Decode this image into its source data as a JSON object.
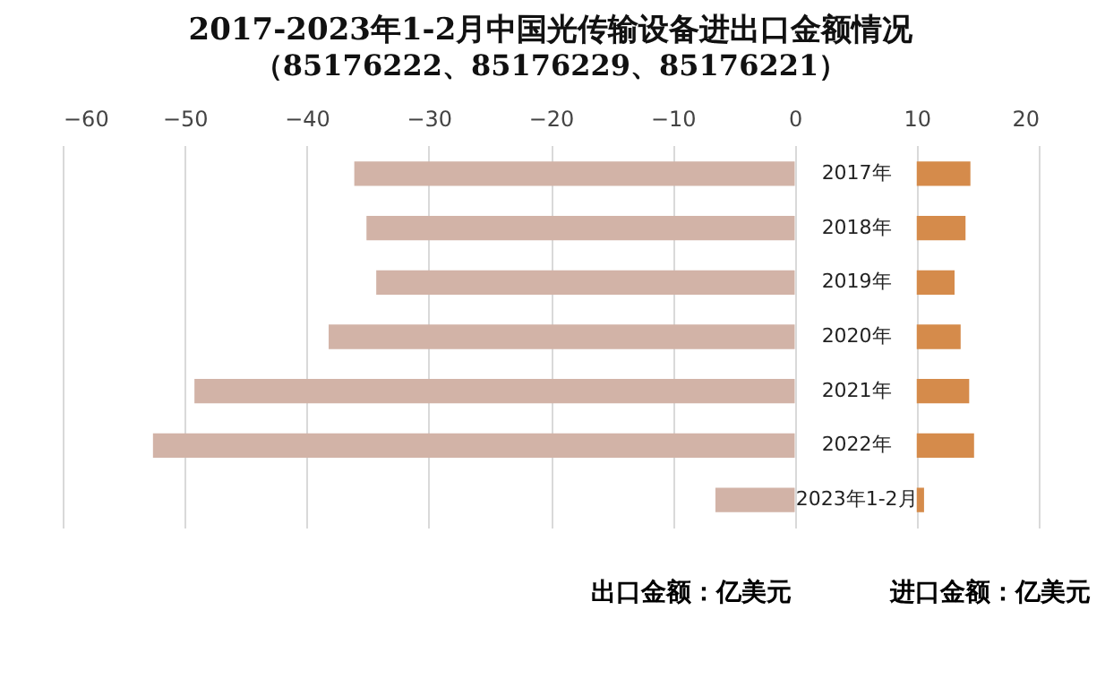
{
  "chart_data": {
    "type": "bar",
    "orientation": "horizontal",
    "title": "2017-2023年1-2月中国光传输设备进出口金额情况",
    "subtitle": "（85176222、85176229、85176221）",
    "categories": [
      "2017年",
      "2018年",
      "2019年",
      "2020年",
      "2021年",
      "2022年",
      "2023年1-2月"
    ],
    "series": [
      {
        "color": "#d2b3a7",
        "base": [
          0,
          0,
          0,
          0,
          0,
          0,
          0
        ],
        "values": [
          -36.1,
          -35.1,
          -34.3,
          -38.2,
          -49.2,
          -52.6,
          -6.5
        ]
      },
      {
        "color": "#d58b4b",
        "base": [
          10,
          10,
          10,
          10,
          10,
          10,
          10
        ],
        "values": [
          4.4,
          4.0,
          3.1,
          3.6,
          4.3,
          4.7,
          0.6
        ]
      }
    ],
    "xlim": [
      -60,
      20
    ],
    "xticks": [
      -60,
      -50,
      -40,
      -30,
      -20,
      -10,
      0,
      10,
      20
    ],
    "grid": "x",
    "annotations": [
      "出口金额：亿美元",
      "进口金额：亿美元"
    ]
  }
}
